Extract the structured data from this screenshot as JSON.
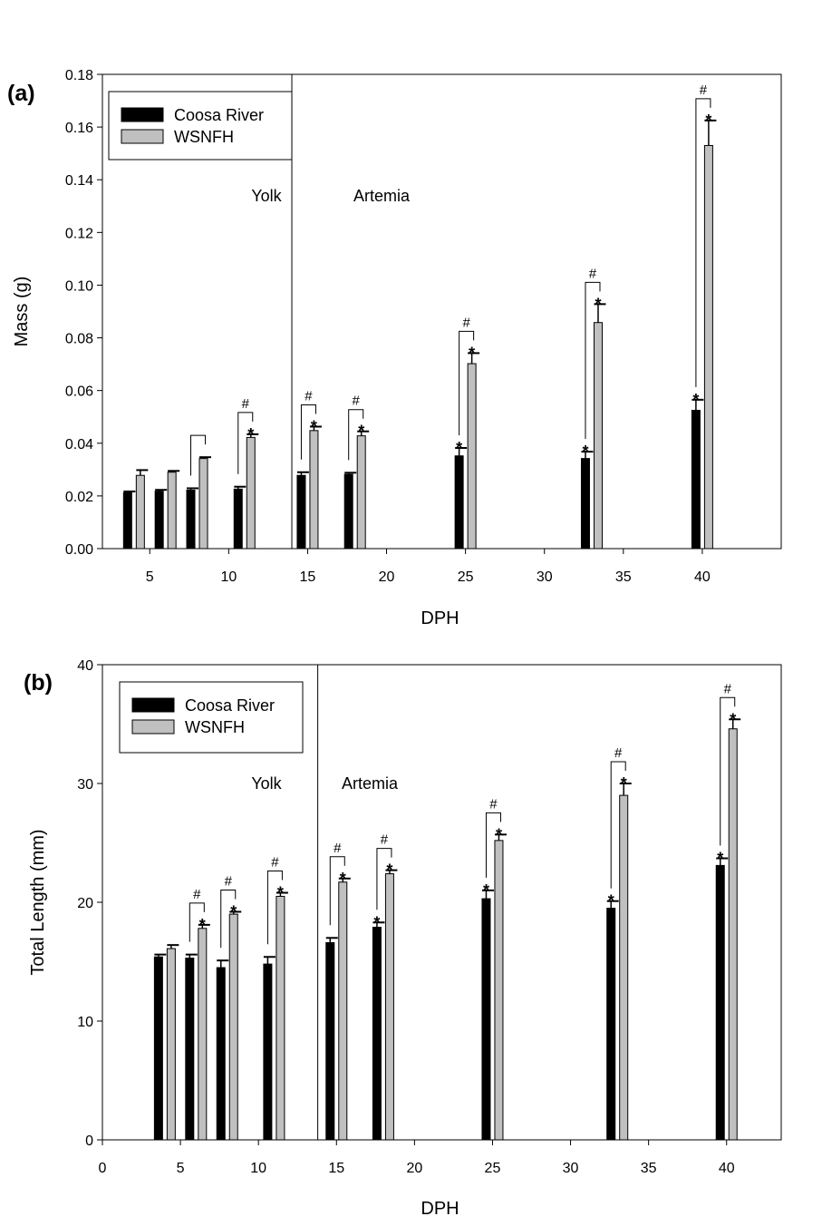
{
  "chart_data": [
    {
      "type": "bar",
      "panel_label": "(a)",
      "xlabel": "DPH",
      "ylabel": "Mass (g)",
      "xlim": [
        2,
        45
      ],
      "ylim": [
        0,
        0.18
      ],
      "xticks": [
        "5",
        "10",
        "15",
        "20",
        "25",
        "30",
        "35",
        "40"
      ],
      "xtick_values": [
        5,
        10,
        15,
        20,
        25,
        30,
        35,
        40
      ],
      "yticks": [
        "0.00",
        "0.02",
        "0.04",
        "0.06",
        "0.08",
        "0.10",
        "0.12",
        "0.14",
        "0.16",
        "0.18"
      ],
      "ytick_values": [
        0,
        0.02,
        0.04,
        0.06,
        0.08,
        0.1,
        0.12,
        0.14,
        0.16,
        0.18
      ],
      "divider_x": 14,
      "phase_labels": [
        "Yolk",
        "Artemia"
      ],
      "legend": "top-left",
      "series": [
        {
          "name": "Coosa River",
          "color": "#000000",
          "x": [
            4,
            6,
            8,
            11,
            15,
            18,
            25,
            33,
            40
          ],
          "values": [
            0.0212,
            0.0218,
            0.0222,
            0.0226,
            0.0278,
            0.0282,
            0.0352,
            0.0342,
            0.0525
          ],
          "errors": [
            0.0005,
            0.0005,
            0.0007,
            0.0009,
            0.0012,
            0.0006,
            0.003,
            0.0026,
            0.004
          ],
          "stars": [
            false,
            false,
            false,
            false,
            false,
            false,
            true,
            true,
            true
          ]
        },
        {
          "name": "WSNFH",
          "color": "#c0c0c0",
          "x": [
            4,
            6,
            8,
            11,
            15,
            18,
            25,
            33,
            40
          ],
          "values": [
            0.0278,
            0.029,
            0.0342,
            0.0422,
            0.0448,
            0.0428,
            0.0702,
            0.0858,
            0.153
          ],
          "errors": [
            0.002,
            0.0005,
            0.0005,
            0.0012,
            0.0015,
            0.0017,
            0.004,
            0.007,
            0.0095
          ],
          "stars": [
            false,
            false,
            false,
            true,
            true,
            true,
            true,
            true,
            true
          ]
        }
      ],
      "hash_brackets": [
        {
          "x": 8,
          "label": ""
        },
        {
          "x": 11,
          "label": "#"
        },
        {
          "x": 15,
          "label": "#"
        },
        {
          "x": 18,
          "label": "#"
        },
        {
          "x": 25,
          "label": "#"
        },
        {
          "x": 33,
          "label": "#"
        },
        {
          "x": 40,
          "label": "#"
        }
      ]
    },
    {
      "type": "bar",
      "panel_label": "(b)",
      "xlabel": "DPH",
      "ylabel": "Total Length (mm)",
      "xlim": [
        0,
        43.5
      ],
      "ylim": [
        0,
        40
      ],
      "xticks": [
        "0",
        "5",
        "10",
        "15",
        "20",
        "25",
        "30",
        "35",
        "40"
      ],
      "xtick_values": [
        0,
        5,
        10,
        15,
        20,
        25,
        30,
        35,
        40
      ],
      "yticks": [
        "0",
        "10",
        "20",
        "30",
        "40"
      ],
      "ytick_values": [
        0,
        10,
        20,
        30,
        40
      ],
      "divider_x": 13.8,
      "phase_labels": [
        "Yolk",
        "Artemia"
      ],
      "legend": "top-left",
      "series": [
        {
          "name": "Coosa River",
          "color": "#000000",
          "x": [
            4,
            6,
            8,
            11,
            15,
            18,
            25,
            33,
            40
          ],
          "values": [
            15.4,
            15.3,
            14.5,
            14.8,
            16.6,
            17.9,
            20.3,
            19.5,
            23.1
          ],
          "errors": [
            0.2,
            0.3,
            0.6,
            0.6,
            0.4,
            0.4,
            0.7,
            0.6,
            0.6
          ],
          "stars": [
            false,
            false,
            false,
            false,
            false,
            true,
            true,
            true,
            true
          ]
        },
        {
          "name": "WSNFH",
          "color": "#c0c0c0",
          "x": [
            4,
            6,
            8,
            11,
            15,
            18,
            25,
            33,
            40
          ],
          "values": [
            16.1,
            17.8,
            19.0,
            20.5,
            21.7,
            22.4,
            25.2,
            29.0,
            34.6
          ],
          "errors": [
            0.3,
            0.3,
            0.2,
            0.3,
            0.3,
            0.3,
            0.5,
            1.0,
            0.8
          ],
          "stars": [
            false,
            true,
            true,
            true,
            true,
            true,
            true,
            true,
            true
          ]
        }
      ],
      "hash_brackets": [
        {
          "x": 6,
          "label": "#"
        },
        {
          "x": 8,
          "label": "#"
        },
        {
          "x": 11,
          "label": "#"
        },
        {
          "x": 15,
          "label": "#"
        },
        {
          "x": 18,
          "label": "#"
        },
        {
          "x": 25,
          "label": "#"
        },
        {
          "x": 33,
          "label": "#"
        },
        {
          "x": 40,
          "label": "#"
        }
      ]
    }
  ],
  "star_symbol": "*"
}
